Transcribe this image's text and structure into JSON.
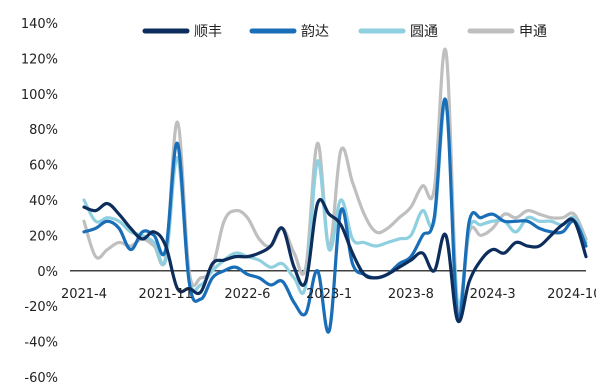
{
  "chart_data": {
    "type": "line",
    "title": "",
    "xlabel": "",
    "ylabel": "",
    "ylim": [
      -60,
      140
    ],
    "y_ticks": [
      140,
      120,
      100,
      80,
      60,
      40,
      20,
      0,
      -20,
      -40,
      -60
    ],
    "y_tick_labels": [
      "140%",
      "120%",
      "100%",
      "80%",
      "60%",
      "40%",
      "20%",
      "0%",
      "-20%",
      "-40%",
      "-60%"
    ],
    "x_tick_labels": [
      "2021-4",
      "2021-11",
      "2022-6",
      "2023-1",
      "2023-8",
      "2024-3",
      "2024-10"
    ],
    "grid": false,
    "legend_position": "top",
    "x_months": [
      "2021-4",
      "2021-5",
      "2021-6",
      "2021-7",
      "2021-8",
      "2021-9",
      "2021-10",
      "2021-11",
      "2021-12",
      "2022-1",
      "2022-2",
      "2022-3",
      "2022-4",
      "2022-5",
      "2022-6",
      "2022-7",
      "2022-8",
      "2022-9",
      "2022-10",
      "2022-11",
      "2022-12",
      "2023-1",
      "2023-2",
      "2023-3",
      "2023-4",
      "2023-5",
      "2023-6",
      "2023-7",
      "2023-8",
      "2023-9",
      "2023-10",
      "2023-11",
      "2023-12",
      "2024-1",
      "2024-2",
      "2024-3",
      "2024-4",
      "2024-5",
      "2024-6",
      "2024-7",
      "2024-8",
      "2024-9",
      "2024-10",
      "2024-11"
    ],
    "series": [
      {
        "name": "申通",
        "color": "#bfbfbf",
        "values": [
          28,
          8,
          12,
          16,
          14,
          18,
          14,
          8,
          84,
          0,
          -4,
          2,
          28,
          34,
          30,
          18,
          14,
          24,
          10,
          2,
          72,
          14,
          68,
          50,
          32,
          22,
          24,
          30,
          36,
          48,
          46,
          124,
          -20,
          22,
          20,
          24,
          32,
          30,
          34,
          32,
          30,
          30,
          32,
          18
        ]
      },
      {
        "name": "圆通",
        "color": "#8ecfe0",
        "values": [
          40,
          28,
          30,
          28,
          22,
          20,
          16,
          6,
          64,
          -4,
          -8,
          0,
          6,
          10,
          8,
          6,
          2,
          4,
          -4,
          -8,
          62,
          12,
          40,
          18,
          16,
          14,
          16,
          18,
          20,
          34,
          28,
          94,
          -18,
          24,
          26,
          28,
          28,
          22,
          30,
          28,
          28,
          26,
          30,
          16
        ]
      },
      {
        "name": "韵达",
        "color": "#1a6eb8",
        "values": [
          22,
          24,
          28,
          24,
          12,
          22,
          20,
          12,
          72,
          -6,
          -16,
          -4,
          0,
          2,
          -2,
          -4,
          -8,
          -6,
          -18,
          -24,
          0,
          -34,
          34,
          4,
          -2,
          -4,
          -2,
          4,
          8,
          20,
          30,
          96,
          -26,
          28,
          30,
          32,
          28,
          28,
          28,
          24,
          22,
          22,
          28,
          14
        ]
      },
      {
        "name": "顺丰",
        "color": "#0d2d5c",
        "values": [
          36,
          34,
          38,
          32,
          24,
          18,
          22,
          14,
          -10,
          -10,
          -12,
          4,
          6,
          8,
          8,
          10,
          14,
          24,
          2,
          -6,
          38,
          32,
          26,
          10,
          -2,
          -4,
          -2,
          2,
          6,
          10,
          0,
          20,
          -28,
          -6,
          6,
          12,
          10,
          16,
          14,
          14,
          20,
          26,
          28,
          8
        ]
      }
    ]
  }
}
